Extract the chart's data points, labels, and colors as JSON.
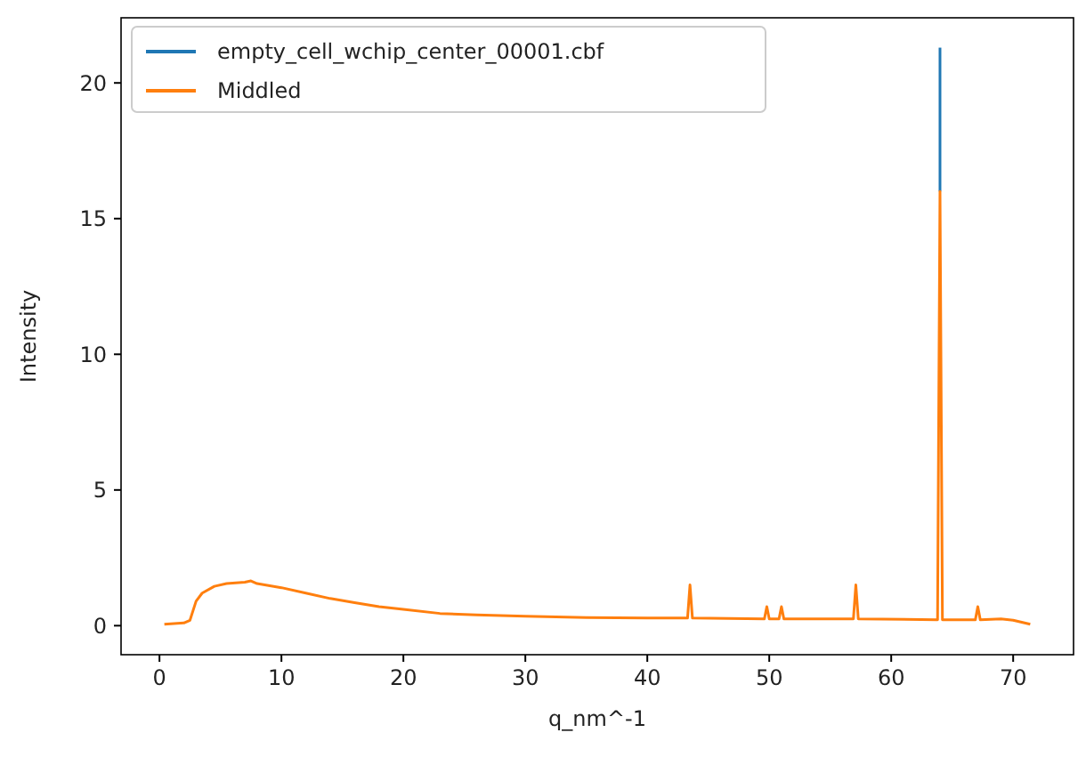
{
  "chart_data": {
    "type": "line",
    "xlabel": "q_nm^-1",
    "ylabel": "Intensity",
    "xlim": [
      -3.15,
      74.95
    ],
    "xticks": [
      0,
      10,
      20,
      30,
      40,
      50,
      60,
      70
    ],
    "ylim": [
      -1.07,
      22.4
    ],
    "yticks": [
      0,
      5,
      10,
      15,
      20
    ],
    "legend": "top left",
    "grid": false,
    "series": [
      {
        "name": "empty_cell_wchip_center_00001.cbf",
        "color": "#1f77b4",
        "x": [
          64.0,
          64.0
        ],
        "values": [
          16,
          21.3
        ]
      },
      {
        "name": "Middled",
        "color": "#ff7f0e",
        "x": [
          0.4,
          2.0,
          2.5,
          3.0,
          3.5,
          4.5,
          5.5,
          7.0,
          7.5,
          8.0,
          10,
          12,
          14,
          16,
          18,
          20,
          23,
          26,
          30,
          35,
          40,
          43.3,
          43.5,
          43.7,
          49.6,
          49.8,
          50.0,
          50.8,
          51.0,
          51.2,
          56.9,
          57.1,
          57.3,
          63.8,
          64.0,
          64.2,
          66.9,
          67.1,
          67.3,
          69,
          70,
          71.4
        ],
        "values": [
          0.05,
          0.1,
          0.2,
          0.9,
          1.2,
          1.45,
          1.55,
          1.6,
          1.65,
          1.55,
          1.4,
          1.2,
          1.0,
          0.85,
          0.7,
          0.6,
          0.45,
          0.4,
          0.35,
          0.3,
          0.28,
          0.28,
          1.5,
          0.28,
          0.25,
          0.7,
          0.25,
          0.25,
          0.7,
          0.25,
          0.25,
          1.5,
          0.25,
          0.22,
          16,
          0.22,
          0.22,
          0.7,
          0.22,
          0.25,
          0.2,
          0.05
        ]
      }
    ]
  }
}
